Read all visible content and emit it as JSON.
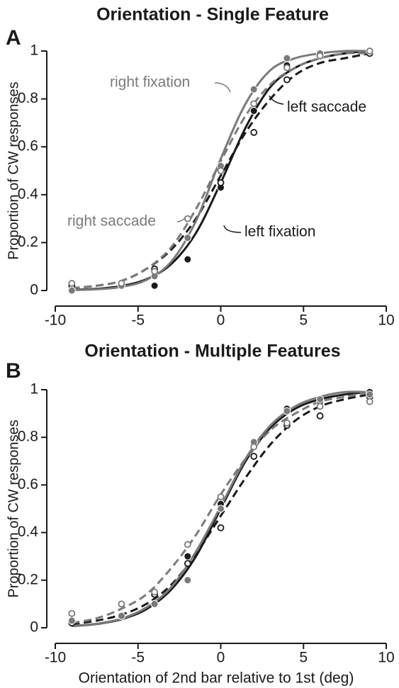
{
  "chart_data": [
    {
      "type": "line",
      "panel": "A",
      "title": "Orientation - Single Feature",
      "ylabel": "Proportion of CW responses",
      "xlim": [
        -10,
        10
      ],
      "ylim": [
        0,
        1
      ],
      "xticks": [
        -10,
        -5,
        0,
        5,
        10
      ],
      "yticks": [
        0,
        0.2,
        0.4,
        0.6,
        0.8,
        1
      ],
      "fit_x": [
        -9,
        -7.5,
        -6,
        -4.5,
        -3,
        -1.5,
        0,
        1.5,
        3,
        4.5,
        6,
        7.5,
        9
      ],
      "series": [
        {
          "name": "left fixation",
          "color": "#1a1a1a",
          "dashed": false,
          "marker": "filled",
          "x": [
            -9,
            -6,
            -4,
            -2,
            0,
            2,
            4,
            6,
            9
          ],
          "values": [
            0,
            0.02,
            0.02,
            0.13,
            0.43,
            0.75,
            0.94,
            0.98,
            1
          ],
          "fit": [
            0.003,
            0.007,
            0.019,
            0.047,
            0.11,
            0.24,
            0.45,
            0.68,
            0.85,
            0.93,
            0.97,
            0.99,
            1
          ]
        },
        {
          "name": "left saccade",
          "color": "#1a1a1a",
          "dashed": true,
          "marker": "open",
          "x": [
            -9,
            -6,
            -4,
            -2,
            0,
            2,
            4,
            6,
            9
          ],
          "values": [
            0.02,
            0.02,
            0.09,
            0.22,
            0.45,
            0.66,
            0.88,
            0.98,
            0.99
          ],
          "fit": [
            0.01,
            0.02,
            0.04,
            0.09,
            0.17,
            0.3,
            0.48,
            0.66,
            0.8,
            0.9,
            0.95,
            0.97,
            0.99
          ]
        },
        {
          "name": "right fixation",
          "color": "#7a7a7a",
          "dashed": false,
          "marker": "filled",
          "x": [
            -9,
            -6,
            -4,
            -2,
            0,
            2,
            4,
            6,
            9
          ],
          "values": [
            0,
            0.02,
            0.06,
            0.22,
            0.52,
            0.84,
            0.97,
            0.99,
            1
          ],
          "fit": [
            0.002,
            0.005,
            0.015,
            0.044,
            0.12,
            0.29,
            0.55,
            0.78,
            0.92,
            0.97,
            0.99,
            1,
            1
          ]
        },
        {
          "name": "right saccade",
          "color": "#7a7a7a",
          "dashed": true,
          "marker": "open",
          "x": [
            -9,
            -6,
            -4,
            -2,
            0,
            2,
            4,
            6,
            9
          ],
          "values": [
            0.03,
            0.03,
            0.08,
            0.3,
            0.5,
            0.78,
            0.93,
            0.98,
            1
          ],
          "fit": [
            0.01,
            0.02,
            0.04,
            0.09,
            0.18,
            0.34,
            0.54,
            0.73,
            0.86,
            0.93,
            0.97,
            0.99,
            0.99
          ]
        }
      ]
    },
    {
      "type": "line",
      "panel": "B",
      "title": "Orientation - Multiple Features",
      "ylabel": "Proportion of CW responses",
      "xlabel": "Orientation of 2nd bar relative to 1st (deg)",
      "xlim": [
        -10,
        10
      ],
      "ylim": [
        0,
        1
      ],
      "xticks": [
        -10,
        -5,
        0,
        5,
        10
      ],
      "yticks": [
        0,
        0.2,
        0.4,
        0.6,
        0.8,
        1
      ],
      "fit_x": [
        -9,
        -7.5,
        -6,
        -4.5,
        -3,
        -1.5,
        0,
        1.5,
        3,
        4.5,
        6,
        7.5,
        9
      ],
      "series": [
        {
          "color": "#1a1a1a",
          "dashed": false,
          "marker": "filled",
          "x": [
            -9,
            -6,
            -4,
            -2,
            0,
            2,
            4,
            6,
            9
          ],
          "values": [
            0.03,
            0.05,
            0.1,
            0.3,
            0.52,
            0.72,
            0.92,
            0.95,
            0.99
          ],
          "fit": [
            0.007,
            0.016,
            0.036,
            0.078,
            0.16,
            0.3,
            0.5,
            0.7,
            0.84,
            0.92,
            0.96,
            0.98,
            0.99
          ]
        },
        {
          "color": "#1a1a1a",
          "dashed": true,
          "marker": "open",
          "x": [
            -9,
            -6,
            -4,
            -2,
            0,
            2,
            4,
            6,
            9
          ],
          "values": [
            0.02,
            0.05,
            0.14,
            0.27,
            0.42,
            0.72,
            0.85,
            0.89,
            0.97
          ],
          "fit": [
            0.015,
            0.03,
            0.055,
            0.1,
            0.18,
            0.31,
            0.47,
            0.63,
            0.77,
            0.87,
            0.93,
            0.96,
            0.98
          ]
        },
        {
          "color": "#7a7a7a",
          "dashed": false,
          "marker": "filled",
          "x": [
            -9,
            -6,
            -4,
            -2,
            0,
            2,
            4,
            6,
            9
          ],
          "values": [
            0.03,
            0.05,
            0.1,
            0.2,
            0.5,
            0.78,
            0.91,
            0.96,
            0.98
          ],
          "fit": [
            0.008,
            0.017,
            0.038,
            0.085,
            0.17,
            0.32,
            0.51,
            0.71,
            0.85,
            0.93,
            0.97,
            0.99,
            0.99
          ]
        },
        {
          "color": "#7a7a7a",
          "dashed": true,
          "marker": "open",
          "x": [
            -9,
            -6,
            -4,
            -2,
            0,
            2,
            4,
            6,
            9
          ],
          "values": [
            0.06,
            0.1,
            0.15,
            0.35,
            0.55,
            0.76,
            0.86,
            0.93,
            0.95
          ],
          "fit": [
            0.02,
            0.04,
            0.08,
            0.14,
            0.25,
            0.39,
            0.56,
            0.71,
            0.83,
            0.9,
            0.95,
            0.97,
            0.99
          ]
        }
      ]
    }
  ]
}
